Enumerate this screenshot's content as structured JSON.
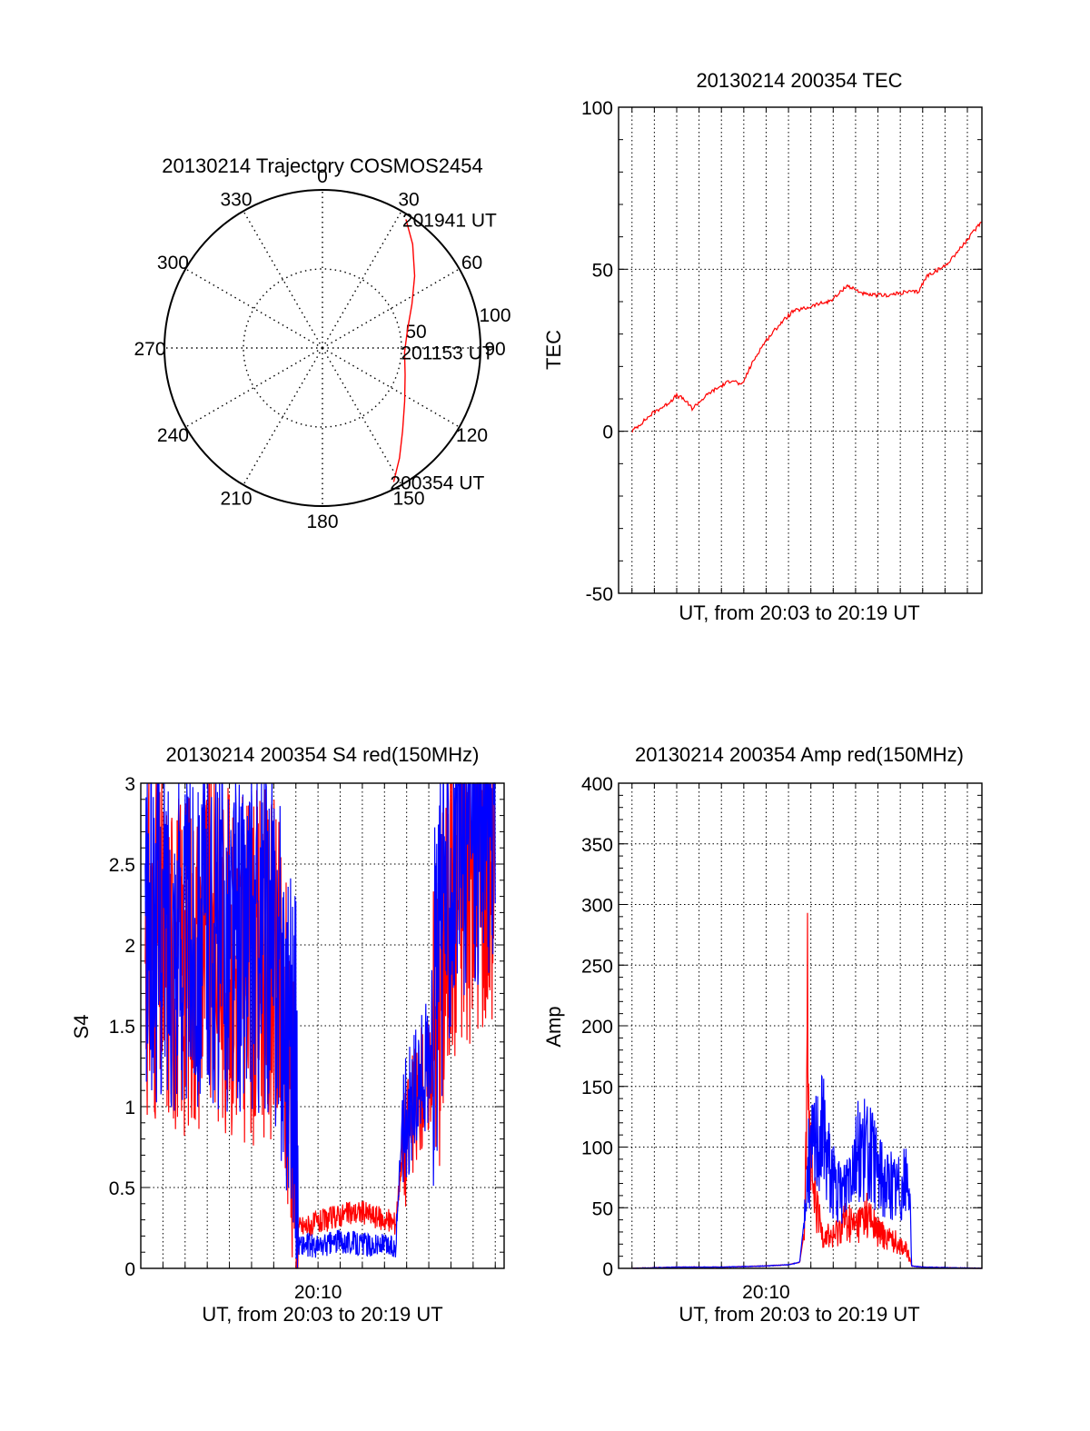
{
  "colors": {
    "red": "#ff0000",
    "blue": "#0000ff",
    "axis": "#000000"
  },
  "chart_data": [
    {
      "id": "trajectory",
      "type": "scatter",
      "projection": "polar",
      "title": "20130214 Trajectory COSMOS2454",
      "angle_labels": [
        "0",
        "30",
        "60",
        "90",
        "120",
        "150",
        "180",
        "210",
        "240",
        "270",
        "300",
        "330"
      ],
      "radius_labels": [
        "50",
        "100"
      ],
      "rlim": [
        0,
        100
      ],
      "grid": true,
      "series": [
        {
          "color": "red",
          "points": [
            {
              "az": 152,
              "r": 96
            },
            {
              "az": 145,
              "r": 85
            },
            {
              "az": 136,
              "r": 73
            },
            {
              "az": 123,
              "r": 62
            },
            {
              "az": 108,
              "r": 55
            },
            {
              "az": 93,
              "r": 52
            },
            {
              "az": 78,
              "r": 55
            },
            {
              "az": 64,
              "r": 63
            },
            {
              "az": 52,
              "r": 74
            },
            {
              "az": 41,
              "r": 87
            },
            {
              "az": 33,
              "r": 97
            }
          ]
        }
      ],
      "annotations": [
        {
          "text": "201941 UT",
          "az": 33,
          "r": 97
        },
        {
          "text": "201153 UT",
          "az": 93,
          "r": 52
        },
        {
          "text": "200354 UT",
          "az": 152,
          "r": 96
        }
      ]
    },
    {
      "id": "tec",
      "type": "line",
      "title": "20130214 200354 TEC",
      "xlabel": "UT, from 20:03 to 20:19 UT",
      "ylabel": "TEC",
      "xlim": [
        3.4,
        19.65
      ],
      "ylim": [
        -50,
        100
      ],
      "yticks": [
        -50,
        0,
        50,
        100
      ],
      "grid": true,
      "series": [
        {
          "color": "red",
          "x": [
            4.0,
            4.5,
            5.0,
            5.5,
            6.0,
            6.3,
            6.7,
            7.0,
            7.5,
            8.0,
            8.5,
            8.9,
            9.3,
            9.7,
            10.0,
            10.6,
            11.2,
            11.8,
            12.2,
            12.8,
            13.2,
            13.6,
            14.5,
            15.5,
            16.3,
            16.8,
            17.2,
            18.0,
            18.5,
            19.0,
            19.65
          ],
          "y": [
            0,
            3,
            6,
            8,
            11,
            10,
            7,
            9,
            12,
            14,
            16,
            14,
            20,
            25,
            28,
            33,
            37,
            38,
            39,
            40,
            42,
            45,
            42,
            42,
            43,
            43,
            48,
            51,
            55,
            59,
            65
          ]
        }
      ]
    },
    {
      "id": "s4",
      "type": "line",
      "title": "20130214 200354 S4 red(150MHz)",
      "xlabel": "UT, from 20:03 to 20:19 UT",
      "ylabel": "S4",
      "categories": [
        "20:10"
      ],
      "xlim": [
        2.0,
        18.4
      ],
      "ylim": [
        0,
        3
      ],
      "yticks": [
        0,
        0.5,
        1,
        1.5,
        2,
        2.5,
        3
      ],
      "grid": true,
      "series": [
        {
          "color": "red",
          "x": [
            2.2,
            3,
            4,
            5,
            6,
            7,
            7.5,
            8.0,
            8.2,
            8.4,
            8.7,
            8.9,
            9.0,
            9.1,
            10,
            11,
            12,
            13,
            13.5,
            13.8,
            14.2,
            14.6,
            15,
            16,
            17,
            18
          ],
          "y": [
            2.0,
            1.95,
            1.9,
            2.0,
            1.9,
            1.85,
            1.9,
            1.85,
            1.7,
            1.5,
            1.3,
            1.05,
            0.85,
            0.25,
            0.28,
            0.33,
            0.35,
            0.3,
            0.28,
            0.7,
            0.9,
            1.1,
            1.2,
            2.3,
            2.5,
            2.6
          ]
        },
        {
          "color": "blue",
          "x": [
            2.2,
            3,
            4,
            5,
            6,
            7,
            7.5,
            8.0,
            8.2,
            8.4,
            8.7,
            8.9,
            9.0,
            9.1,
            10,
            11,
            12,
            13,
            13.5,
            13.8,
            14.2,
            14.6,
            15,
            16,
            17,
            18
          ],
          "y": [
            2.1,
            2.1,
            2.05,
            2.1,
            2.05,
            2.0,
            2.05,
            2.0,
            1.9,
            1.7,
            1.5,
            1.35,
            1.2,
            0.15,
            0.13,
            0.17,
            0.15,
            0.14,
            0.13,
            0.9,
            1.0,
            1.15,
            1.3,
            2.6,
            2.8,
            2.9
          ]
        }
      ]
    },
    {
      "id": "amp",
      "type": "line",
      "title": "20130214 200354 Amp red(150MHz)",
      "xlabel": "UT, from 20:03 to 20:19 UT",
      "ylabel": "Amp",
      "categories": [
        "20:10"
      ],
      "xlim": [
        3.4,
        19.65
      ],
      "ylim": [
        0,
        400
      ],
      "yticks": [
        0,
        50,
        100,
        150,
        200,
        250,
        300,
        350,
        400
      ],
      "grid": true,
      "series": [
        {
          "color": "red",
          "x": [
            4.0,
            6,
            8,
            10,
            11.0,
            11.5,
            11.7,
            11.8,
            11.85,
            11.9,
            12.1,
            12.5,
            13.0,
            13.5,
            14.0,
            14.5,
            15.0,
            15.5,
            16.0,
            16.3,
            16.5,
            17,
            19.65
          ],
          "y": [
            0,
            1,
            1,
            2,
            3,
            5,
            30,
            150,
            305,
            120,
            60,
            30,
            25,
            40,
            35,
            45,
            30,
            25,
            20,
            15,
            2,
            1,
            0
          ]
        },
        {
          "color": "blue",
          "x": [
            4.0,
            6,
            8,
            10,
            11.0,
            11.5,
            11.7,
            11.9,
            12.1,
            12.5,
            12.9,
            13.2,
            13.5,
            13.8,
            14.2,
            14.6,
            15.0,
            15.4,
            15.8,
            16.2,
            16.4,
            16.5,
            17,
            19.65
          ],
          "y": [
            0,
            1,
            1,
            2,
            3,
            5,
            40,
            85,
            100,
            115,
            80,
            60,
            65,
            90,
            100,
            95,
            80,
            70,
            65,
            70,
            75,
            2,
            1,
            0
          ]
        }
      ]
    }
  ]
}
